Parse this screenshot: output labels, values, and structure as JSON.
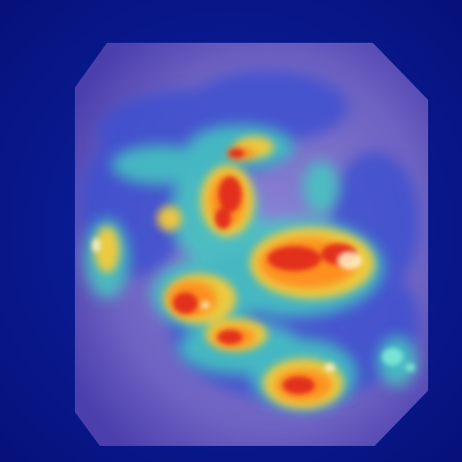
{
  "image": {
    "kind": "endoscopy-heatmap-overlay",
    "colors": {
      "background": "#0a1a8c",
      "frame_tissue": "#7f73c9",
      "heat_low": "#2a3fc4",
      "heat_mid": "#3fd1c0",
      "heat_high": "#ffd23a",
      "heat_peak": "#e2261c"
    }
  }
}
